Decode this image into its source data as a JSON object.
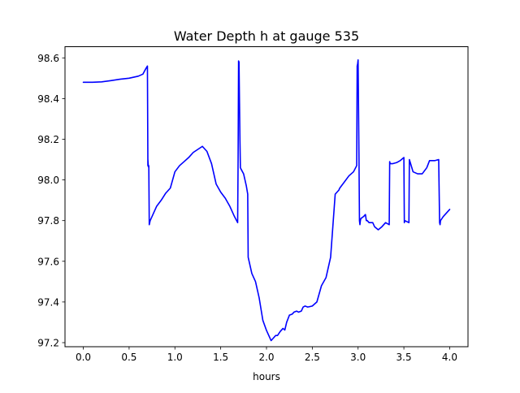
{
  "chart_data": {
    "type": "line",
    "title": "Water Depth h at gauge 535",
    "xlabel": "hours",
    "ylabel": "",
    "xlim": [
      -0.2,
      4.2
    ],
    "ylim": [
      97.18,
      98.655
    ],
    "xticks": [
      0.0,
      0.5,
      1.0,
      1.5,
      2.0,
      2.5,
      3.0,
      3.5,
      4.0
    ],
    "xtick_labels": [
      "0.0",
      "0.5",
      "1.0",
      "1.5",
      "2.0",
      "2.5",
      "3.0",
      "3.5",
      "4.0"
    ],
    "yticks": [
      97.2,
      97.4,
      97.6,
      97.8,
      98.0,
      98.2,
      98.4,
      98.6
    ],
    "ytick_labels": [
      "97.2",
      "97.4",
      "97.6",
      "97.8",
      "98.0",
      "98.2",
      "98.4",
      "98.6"
    ],
    "grid": false,
    "series": [
      {
        "color": "#0000ff",
        "x": [
          0.0,
          0.1,
          0.2,
          0.3,
          0.4,
          0.5,
          0.6,
          0.65,
          0.68,
          0.7,
          0.705,
          0.705,
          0.71,
          0.715,
          0.72,
          0.73,
          0.76,
          0.8,
          0.85,
          0.9,
          0.95,
          1.0,
          1.05,
          1.1,
          1.15,
          1.2,
          1.25,
          1.3,
          1.35,
          1.4,
          1.45,
          1.5,
          1.55,
          1.6,
          1.65,
          1.685,
          1.69,
          1.695,
          1.7,
          1.71,
          1.715,
          1.72,
          1.75,
          1.78,
          1.795,
          1.8,
          1.84,
          1.88,
          1.92,
          1.96,
          2.0,
          2.05,
          2.08,
          2.1,
          2.12,
          2.15,
          2.18,
          2.2,
          2.22,
          2.25,
          2.28,
          2.3,
          2.33,
          2.35,
          2.38,
          2.4,
          2.42,
          2.45,
          2.5,
          2.55,
          2.6,
          2.65,
          2.7,
          2.75,
          2.79,
          2.8,
          2.85,
          2.9,
          2.95,
          2.985,
          2.99,
          2.995,
          3.0,
          3.01,
          3.015,
          3.02,
          3.025,
          3.03,
          3.06,
          3.08,
          3.09,
          3.1,
          3.12,
          3.14,
          3.16,
          3.18,
          3.22,
          3.26,
          3.3,
          3.34,
          3.345,
          3.35,
          3.38,
          3.42,
          3.46,
          3.5,
          3.505,
          3.51,
          3.555,
          3.56,
          3.6,
          3.65,
          3.7,
          3.75,
          3.78,
          3.84,
          3.88,
          3.89,
          3.895,
          3.9,
          3.93,
          3.97,
          4.0
        ],
        "y": [
          98.48,
          98.48,
          98.482,
          98.488,
          98.495,
          98.5,
          98.51,
          98.52,
          98.545,
          98.56,
          98.07,
          98.1,
          98.065,
          98.07,
          97.78,
          97.8,
          97.83,
          97.87,
          97.9,
          97.935,
          97.96,
          98.04,
          98.07,
          98.09,
          98.11,
          98.135,
          98.15,
          98.165,
          98.14,
          98.08,
          97.98,
          97.94,
          97.91,
          97.87,
          97.82,
          97.79,
          98.1,
          98.585,
          98.58,
          98.2,
          98.06,
          98.055,
          98.03,
          97.97,
          97.93,
          97.62,
          97.54,
          97.5,
          97.42,
          97.31,
          97.26,
          97.21,
          97.225,
          97.235,
          97.235,
          97.255,
          97.27,
          97.262,
          97.3,
          97.335,
          97.34,
          97.35,
          97.355,
          97.35,
          97.355,
          97.375,
          97.38,
          97.375,
          97.38,
          97.4,
          97.48,
          97.52,
          97.62,
          97.93,
          97.95,
          97.96,
          97.99,
          98.02,
          98.04,
          98.07,
          98.56,
          98.57,
          98.59,
          98.1,
          97.8,
          97.78,
          97.8,
          97.81,
          97.82,
          97.83,
          97.8,
          97.8,
          97.79,
          97.79,
          97.79,
          97.77,
          97.755,
          97.77,
          97.79,
          97.78,
          98.09,
          98.08,
          98.08,
          98.085,
          98.095,
          98.11,
          97.79,
          97.8,
          97.79,
          98.1,
          98.04,
          98.03,
          98.03,
          98.06,
          98.095,
          98.095,
          98.1,
          97.79,
          97.78,
          97.8,
          97.82,
          97.84,
          97.855
        ]
      }
    ]
  }
}
